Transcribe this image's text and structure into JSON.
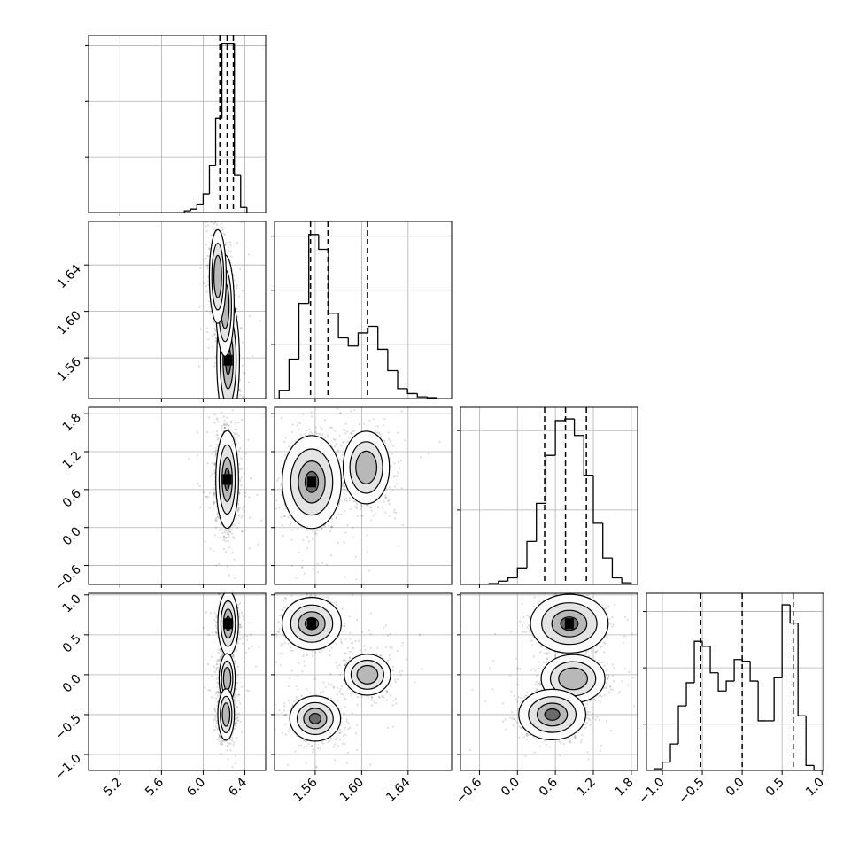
{
  "chart_data": {
    "type": "corner",
    "n_params": 4,
    "grid": true,
    "colors": {
      "axes": "#000000",
      "grid": "#b0b0b0",
      "points": "#000000",
      "background": "#ffffff"
    },
    "params": [
      {
        "range": [
          4.9,
          6.6
        ],
        "ticks": [
          5.2,
          5.6,
          6.0,
          6.4
        ],
        "tick_labels": [
          "5.2",
          "5.6",
          "6.0",
          "6.4"
        ],
        "quantiles": [
          6.16,
          6.23,
          6.29
        ],
        "histogram": {
          "bins": [
            [
              5.82,
              5.88
            ],
            [
              5.88,
              5.94
            ],
            [
              5.94,
              6.0
            ],
            [
              6.0,
              6.06
            ],
            [
              6.06,
              6.12
            ],
            [
              6.12,
              6.18
            ],
            [
              6.18,
              6.24
            ],
            [
              6.24,
              6.3
            ],
            [
              6.3,
              6.36
            ],
            [
              6.36,
              6.42
            ]
          ],
          "counts": [
            0.01,
            0.02,
            0.05,
            0.11,
            0.28,
            0.56,
            1.0,
            1.0,
            0.22,
            0.03
          ],
          "ymax": 1.05,
          "yticks": [
            0.33,
            0.66,
            0.99
          ]
        },
        "mode": [
          6.23
        ]
      },
      {
        "range": [
          1.525,
          1.6775
        ],
        "ticks": [
          1.56,
          1.6,
          1.64
        ],
        "tick_labels": [
          "1.56",
          "1.60",
          "1.64"
        ],
        "quantiles": [
          1.556,
          1.571,
          1.605
        ],
        "histogram": {
          "bins": [
            [
              1.529,
              1.5375
            ],
            [
              1.5375,
              1.546
            ],
            [
              1.546,
              1.5545
            ],
            [
              1.5545,
              1.563
            ],
            [
              1.563,
              1.5715
            ],
            [
              1.5715,
              1.58
            ],
            [
              1.58,
              1.5885
            ],
            [
              1.5885,
              1.597
            ],
            [
              1.597,
              1.6055
            ],
            [
              1.6055,
              1.614
            ],
            [
              1.614,
              1.6225
            ],
            [
              1.6225,
              1.631
            ],
            [
              1.631,
              1.6395
            ],
            [
              1.6395,
              1.648
            ],
            [
              1.648,
              1.6565
            ],
            [
              1.6565,
              1.665
            ]
          ],
          "counts": [
            0.05,
            0.24,
            0.58,
            1.0,
            0.91,
            0.52,
            0.37,
            0.32,
            0.4,
            0.44,
            0.3,
            0.17,
            0.06,
            0.03,
            0.01,
            0.005
          ],
          "ymax": 1.08,
          "yticks": [
            0.33,
            0.66,
            0.99
          ]
        },
        "mode": [
          1.557,
          1.604
        ]
      },
      {
        "range": [
          -0.9,
          1.9
        ],
        "ticks": [
          -0.6,
          0.0,
          0.6,
          1.2,
          1.8
        ],
        "tick_labels": [
          "−0.6",
          "0.0",
          "0.6",
          "1.2",
          "1.8"
        ],
        "quantiles": [
          0.43,
          0.76,
          1.09
        ],
        "histogram": {
          "bins": [
            [
              -0.45,
              -0.3
            ],
            [
              -0.3,
              -0.15
            ],
            [
              -0.15,
              0.0
            ],
            [
              0.0,
              0.15
            ],
            [
              0.15,
              0.3
            ],
            [
              0.3,
              0.45
            ],
            [
              0.45,
              0.6
            ],
            [
              0.6,
              0.75
            ],
            [
              0.75,
              0.9
            ],
            [
              0.9,
              1.05
            ],
            [
              1.05,
              1.2
            ],
            [
              1.2,
              1.35
            ],
            [
              1.35,
              1.5
            ],
            [
              1.5,
              1.65
            ],
            [
              1.65,
              1.8
            ]
          ],
          "counts": [
            0.005,
            0.02,
            0.04,
            0.1,
            0.26,
            0.49,
            0.78,
            0.99,
            1.0,
            0.9,
            0.66,
            0.37,
            0.16,
            0.04,
            0.01
          ],
          "ymax": 1.07,
          "yticks": [
            0.45,
            0.93
          ]
        },
        "mode": [
          0.76
        ]
      },
      {
        "range": [
          -1.2,
          1.02
        ],
        "ticks": [
          -1.0,
          -0.5,
          0.0,
          0.5,
          1.0
        ],
        "tick_labels": [
          "−1.0",
          "−0.5",
          "0.0",
          "0.5",
          "1.0"
        ],
        "quantiles": [
          -0.52,
          0.0,
          0.64
        ],
        "histogram": {
          "bins": [
            [
              -1.1,
              -1.0
            ],
            [
              -1.0,
              -0.9
            ],
            [
              -0.9,
              -0.8
            ],
            [
              -0.8,
              -0.7
            ],
            [
              -0.7,
              -0.6
            ],
            [
              -0.6,
              -0.5
            ],
            [
              -0.5,
              -0.4
            ],
            [
              -0.4,
              -0.3
            ],
            [
              -0.3,
              -0.2
            ],
            [
              -0.2,
              -0.1
            ],
            [
              -0.1,
              0.0
            ],
            [
              0.0,
              0.1
            ],
            [
              0.1,
              0.2
            ],
            [
              0.2,
              0.3
            ],
            [
              0.3,
              0.4
            ],
            [
              0.4,
              0.5
            ],
            [
              0.5,
              0.6
            ],
            [
              0.6,
              0.7
            ],
            [
              0.7,
              0.8
            ],
            [
              0.8,
              0.9
            ],
            [
              0.9,
              1.0
            ]
          ],
          "counts": [
            0.01,
            0.05,
            0.16,
            0.39,
            0.53,
            0.78,
            0.75,
            0.59,
            0.48,
            0.54,
            0.67,
            0.66,
            0.54,
            0.3,
            0.3,
            0.56,
            1.0,
            0.89,
            0.33,
            0.03,
            0.0
          ],
          "ymax": 1.07,
          "yticks": [
            0.28,
            0.62,
            0.96
          ]
        },
        "mode": [
          -0.5,
          0.0,
          0.63
        ]
      }
    ],
    "pairs": [
      {
        "row": 1,
        "col": 0,
        "cov": [
          [
            0.0022,
            -0.00046
          ],
          [
            -0.00046,
            0.00055
          ]
        ],
        "modes": [
          [
            6.24,
            1.558,
            1.0
          ],
          [
            6.21,
            1.605,
            0.5
          ],
          [
            6.14,
            1.63,
            0.35
          ]
        ]
      },
      {
        "row": 2,
        "col": 0,
        "cov": [
          [
            0.0022,
            0.0
          ],
          [
            0.0,
            0.11
          ]
        ],
        "modes": [
          [
            6.23,
            0.76,
            1.0
          ]
        ]
      },
      {
        "row": 2,
        "col": 1,
        "cov": [
          [
            0.00012,
            0.0
          ],
          [
            0.0,
            0.1
          ]
        ],
        "modes": [
          [
            1.557,
            0.72,
            1.0
          ],
          [
            1.604,
            0.95,
            0.45
          ]
        ]
      },
      {
        "row": 3,
        "col": 0,
        "cov": [
          [
            0.0018,
            0.0
          ],
          [
            0.0,
            0.03
          ]
        ],
        "modes": [
          [
            6.24,
            0.64,
            1.0
          ],
          [
            6.23,
            -0.05,
            0.45
          ],
          [
            6.22,
            -0.5,
            0.5
          ]
        ]
      },
      {
        "row": 3,
        "col": 1,
        "cov": [
          [
            0.00012,
            0.0
          ],
          [
            0.0,
            0.02
          ]
        ],
        "modes": [
          [
            1.557,
            0.64,
            1.0
          ],
          [
            1.56,
            -0.55,
            0.65
          ],
          [
            1.605,
            0.0,
            0.45
          ]
        ]
      },
      {
        "row": 3,
        "col": 2,
        "cov": [
          [
            0.07,
            0.0
          ],
          [
            0.0,
            0.025
          ]
        ],
        "modes": [
          [
            0.82,
            0.64,
            1.0
          ],
          [
            0.88,
            -0.05,
            0.55
          ],
          [
            0.55,
            -0.5,
            0.65
          ]
        ]
      }
    ]
  }
}
